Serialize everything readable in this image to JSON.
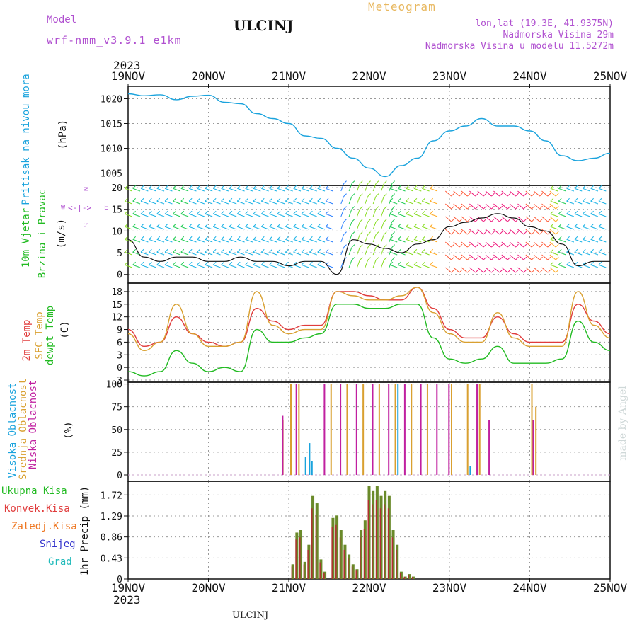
{
  "header": {
    "model_label": "Model",
    "model_name": "wrf-nmm_v3.9.1 e1km",
    "station": "ULCINJ",
    "chart_kind": "Meteogram",
    "coords": "lon,lat (19.3E, 41.9375N)",
    "elevation": "Nadmorska Visina 29m",
    "elevation_model": "Nadmorska Visina u modelu 11.5272m",
    "year_top": "2023",
    "year_bottom": "2023",
    "footer_station": "ULCINJ",
    "credit": "made by Angel"
  },
  "time_axis": {
    "tick_labels": [
      "19NOV",
      "20NOV",
      "21NOV",
      "22NOV",
      "23NOV",
      "24NOV",
      "25NOV"
    ]
  },
  "panel_labels": {
    "pressure": {
      "name": "Pritisak na nivou mora",
      "unit": "(hPa)"
    },
    "wind": {
      "name": "10m Vjetar",
      "name2": "Brzina i Pravac",
      "unit": "(m/s)",
      "compass_w": "W",
      "compass_e": "E",
      "compass_n": "N",
      "compass_s": "S"
    },
    "temp": {
      "t2m": "2m Temp",
      "sfc": "SFC Temp",
      "dew": "dewpt Temp",
      "unit": "(C)"
    },
    "cloud": {
      "high": "Visoka Oblacnost",
      "mid": "Srednja Oblacnost",
      "low": "Niska Oblacnost",
      "unit": "(%)"
    },
    "precip": {
      "unit": "1hr Precip (mm)"
    }
  },
  "precip_legend": [
    {
      "label": "Ukupna Kisa",
      "color": "#22bb22"
    },
    {
      "label": "Konvek.Kisa",
      "color": "#dd2222"
    },
    {
      "label": "Zaledj.Kisa",
      "color": "#ee7722"
    },
    {
      "label": "Snijeg",
      "color": "#3333cc"
    },
    {
      "label": "Grad",
      "color": "#22bbbb"
    }
  ],
  "colors": {
    "pressure": "#1aa3dd",
    "t2m": "#e03c3c",
    "sfc": "#d9a030",
    "dew": "#22bb22",
    "high_cloud": "#1aa3dd",
    "mid_cloud": "#d9a030",
    "low_cloud": "#c020a0",
    "precip_total": "#6a8a2a",
    "precip_conv": "#b03030",
    "grid": "#999999"
  },
  "chart_data": [
    {
      "type": "line",
      "name": "pressure",
      "x_unit": "days from 19NOV 00UTC",
      "ylim": [
        1002.5,
        1022.5
      ],
      "yticks": [
        1005,
        1010,
        1015,
        1020
      ],
      "x": [
        0,
        0.2,
        0.4,
        0.6,
        0.8,
        1.0,
        1.2,
        1.4,
        1.6,
        1.8,
        2.0,
        2.2,
        2.4,
        2.6,
        2.8,
        3.0,
        3.2,
        3.4,
        3.6,
        3.8,
        4.0,
        4.2,
        4.4,
        4.6,
        4.8,
        5.0,
        5.2,
        5.4,
        5.6,
        5.8,
        6.0
      ],
      "series": [
        {
          "values": [
            1021,
            1020.6,
            1020.8,
            1019.8,
            1020.5,
            1020.7,
            1019.3,
            1019.0,
            1017,
            1016,
            1015,
            1012.5,
            1012,
            1010,
            1008,
            1006,
            1004.3,
            1006.5,
            1008,
            1011.5,
            1013.5,
            1014.5,
            1016,
            1014.5,
            1014.5,
            1013.5,
            1011.5,
            1008.5,
            1007.5,
            1008,
            1009
          ]
        }
      ]
    },
    {
      "type": "line",
      "name": "wind",
      "x_unit": "days from 19NOV 00UTC",
      "ylim": [
        -2,
        20.5
      ],
      "yticks": [
        0,
        5,
        10,
        15,
        20
      ],
      "x": [
        0,
        0.2,
        0.4,
        0.6,
        0.8,
        1.0,
        1.2,
        1.4,
        1.6,
        1.8,
        2.0,
        2.2,
        2.4,
        2.6,
        2.8,
        3.0,
        3.2,
        3.4,
        3.6,
        3.8,
        4.0,
        4.2,
        4.4,
        4.6,
        4.8,
        5.0,
        5.2,
        5.4,
        5.6,
        5.8,
        6.0
      ],
      "series": [
        {
          "values": [
            8,
            4,
            3,
            4,
            4,
            3,
            3,
            4,
            3,
            3,
            2,
            3,
            3,
            0,
            8,
            7,
            6,
            5,
            7,
            8,
            11,
            12,
            13,
            14,
            13,
            11,
            10,
            7,
            2,
            3,
            3
          ]
        }
      ]
    },
    {
      "type": "line",
      "name": "temperature",
      "x_unit": "days from 19NOV 00UTC",
      "ylim": [
        -3.5,
        20
      ],
      "yticks": [
        -3,
        0,
        3,
        6,
        9,
        12,
        15,
        18
      ],
      "x": [
        0,
        0.2,
        0.4,
        0.6,
        0.8,
        1.0,
        1.2,
        1.4,
        1.6,
        1.8,
        2.0,
        2.2,
        2.4,
        2.6,
        2.8,
        3.0,
        3.2,
        3.4,
        3.6,
        3.8,
        4.0,
        4.2,
        4.4,
        4.6,
        4.8,
        5.0,
        5.2,
        5.4,
        5.6,
        5.8,
        6.0
      ],
      "series": [
        {
          "name": "2m Temp",
          "values": [
            9,
            5,
            6,
            12,
            8,
            6,
            5,
            6,
            14,
            11,
            9,
            10,
            10,
            18,
            18,
            17,
            16,
            16,
            19,
            14,
            9,
            7,
            7,
            12,
            8,
            6,
            6,
            6,
            15,
            11,
            8
          ]
        },
        {
          "name": "SFC Temp",
          "values": [
            8,
            4,
            6,
            15,
            8,
            5,
            5,
            6,
            18,
            10,
            8,
            9,
            9,
            18,
            17,
            16,
            16,
            17,
            19,
            13,
            8,
            6,
            6,
            13,
            7,
            5,
            5,
            5,
            18,
            10,
            7
          ]
        },
        {
          "name": "dewpt Temp",
          "values": [
            -1,
            -2,
            -1,
            4,
            1,
            -1,
            0,
            -1,
            9,
            6,
            6,
            7,
            8,
            15,
            15,
            14,
            14,
            15,
            15,
            7,
            2,
            1,
            2,
            5,
            1,
            1,
            1,
            2,
            11,
            6,
            4
          ]
        }
      ]
    },
    {
      "type": "bar",
      "name": "cloud",
      "x_unit": "days from 19NOV 00UTC",
      "ylim": [
        -7,
        102
      ],
      "yticks": [
        0,
        25,
        50,
        75,
        100
      ],
      "series": [
        {
          "name": "Visoka Oblacnost",
          "events": [
            [
              2.2,
              20
            ],
            [
              2.25,
              35
            ],
            [
              2.28,
              15
            ],
            [
              3.35,
              100
            ],
            [
              4.25,
              10
            ]
          ]
        },
        {
          "name": "Srednja Oblacnost",
          "events": [
            [
              1.9,
              60
            ],
            [
              2.0,
              100
            ],
            [
              2.1,
              100
            ],
            [
              2.5,
              100
            ],
            [
              2.7,
              100
            ],
            [
              2.9,
              100
            ],
            [
              3.1,
              100
            ],
            [
              3.3,
              100
            ],
            [
              3.5,
              100
            ],
            [
              3.7,
              100
            ],
            [
              4.0,
              100
            ],
            [
              4.2,
              100
            ],
            [
              4.35,
              100
            ],
            [
              5.0,
              100
            ],
            [
              5.05,
              75
            ]
          ]
        },
        {
          "name": "Niska Oblacnost",
          "events": [
            [
              1.88,
              65
            ],
            [
              2.05,
              100
            ],
            [
              2.4,
              100
            ],
            [
              2.6,
              100
            ],
            [
              2.8,
              100
            ],
            [
              3.0,
              100
            ],
            [
              3.2,
              100
            ],
            [
              3.4,
              100
            ],
            [
              3.6,
              100
            ],
            [
              3.8,
              100
            ],
            [
              3.95,
              100
            ],
            [
              4.3,
              100
            ],
            [
              4.45,
              60
            ],
            [
              5.0,
              60
            ]
          ]
        }
      ]
    },
    {
      "type": "bar",
      "name": "precipitation",
      "x_unit": "days from 19NOV 00UTC",
      "ylim": [
        0,
        2.0
      ],
      "yticks": [
        0,
        0.43,
        0.86,
        1.29,
        1.72
      ],
      "series": [
        {
          "name": "Ukupna Kisa",
          "x": [
            2.05,
            2.1,
            2.15,
            2.2,
            2.25,
            2.3,
            2.35,
            2.4,
            2.45,
            2.55,
            2.6,
            2.65,
            2.7,
            2.75,
            2.8,
            2.85,
            2.9,
            2.95,
            3.0,
            3.05,
            3.1,
            3.15,
            3.2,
            3.25,
            3.3,
            3.35,
            3.4,
            3.45,
            3.5,
            3.55
          ],
          "values": [
            0.3,
            0.95,
            1.0,
            0.35,
            0.7,
            1.7,
            1.55,
            0.4,
            0.15,
            1.25,
            1.3,
            1.0,
            0.7,
            0.5,
            0.3,
            0.2,
            1.0,
            1.2,
            1.9,
            1.8,
            1.9,
            1.7,
            1.8,
            1.7,
            1.0,
            0.7,
            0.15,
            0.05,
            0.1,
            0.05
          ]
        }
      ]
    }
  ]
}
